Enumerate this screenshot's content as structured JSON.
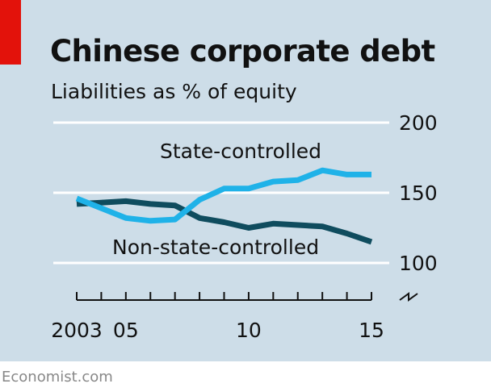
{
  "header": {
    "title": "Chinese corporate debt",
    "subtitle": "Liabilities as % of equity"
  },
  "source": "Economist.com",
  "colors": {
    "background": "#cddde8",
    "accent": "#e3120b",
    "state_controlled": "#1fb2e8",
    "non_state_controlled": "#0f4c5e",
    "gridline": "#ffffff"
  },
  "chart_data": {
    "type": "line",
    "title": "Chinese corporate debt",
    "subtitle": "Liabilities as % of equity",
    "x": [
      2003,
      2004,
      2005,
      2006,
      2007,
      2008,
      2009,
      2010,
      2011,
      2012,
      2013,
      2014,
      2015
    ],
    "x_tick_labels": [
      {
        "x": 2003,
        "label": "2003"
      },
      {
        "x": 2005,
        "label": "05"
      },
      {
        "x": 2010,
        "label": "10"
      },
      {
        "x": 2015,
        "label": "15"
      }
    ],
    "y_ticks": [
      100,
      150,
      200
    ],
    "ylim": [
      100,
      200
    ],
    "y_axis_broken": true,
    "grid": true,
    "series": [
      {
        "name": "State-controlled",
        "color": "#1fb2e8",
        "values": [
          146,
          139,
          132,
          130,
          131,
          145,
          153,
          153,
          158,
          159,
          166,
          163,
          163
        ]
      },
      {
        "name": "Non-state-controlled",
        "color": "#0f4c5e",
        "values": [
          142,
          143,
          144,
          142,
          141,
          132,
          129,
          125,
          128,
          127,
          126,
          121,
          115
        ]
      }
    ]
  }
}
